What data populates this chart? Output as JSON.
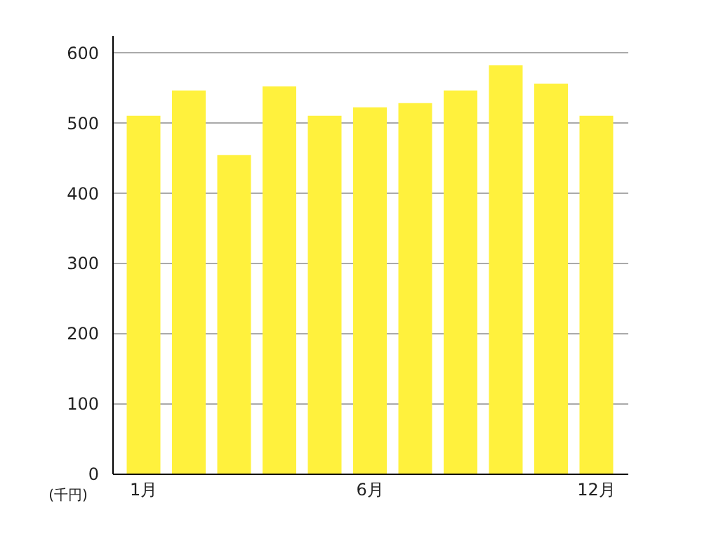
{
  "chart_data": {
    "type": "bar",
    "ylabel": "(千円)",
    "categories": [
      "1月",
      null,
      null,
      null,
      null,
      "6月",
      null,
      null,
      null,
      null,
      "12月"
    ],
    "values": [
      510,
      546,
      454,
      552,
      510,
      522,
      528,
      546,
      582,
      556,
      510
    ],
    "color": "#fff13d",
    "ylim": [
      0,
      625
    ],
    "yticks": [
      0,
      100,
      200,
      300,
      400,
      500,
      600
    ],
    "grid": "y"
  }
}
